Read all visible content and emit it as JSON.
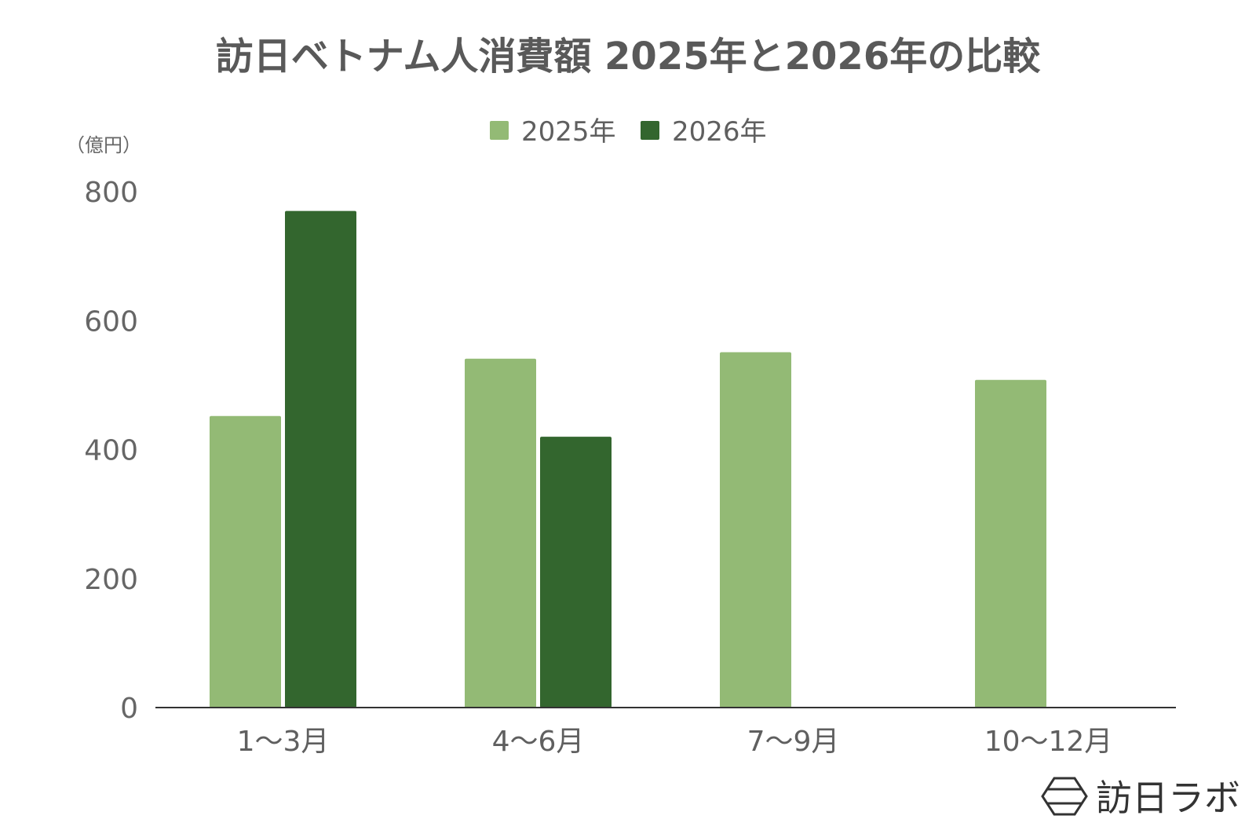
{
  "chart_data": {
    "type": "bar",
    "title": "訪日ベトナム人消費額 2025年と2026年の比較",
    "unit_label": "（億円）",
    "categories": [
      "1〜3月",
      "4〜6月",
      "7〜9月",
      "10〜12月"
    ],
    "series": [
      {
        "name": "2025年",
        "color": "#93ba75",
        "values": [
          452,
          541,
          551,
          508
        ]
      },
      {
        "name": "2026年",
        "color": "#33662e",
        "values": [
          770,
          420,
          null,
          null
        ]
      }
    ],
    "ylim": [
      0,
      800
    ],
    "yticks": [
      0,
      200,
      400,
      600,
      800
    ],
    "grid": false,
    "legend_position": "top"
  },
  "logo": {
    "text": "訪日ラボ",
    "icon": "hexagon-logo-icon"
  }
}
